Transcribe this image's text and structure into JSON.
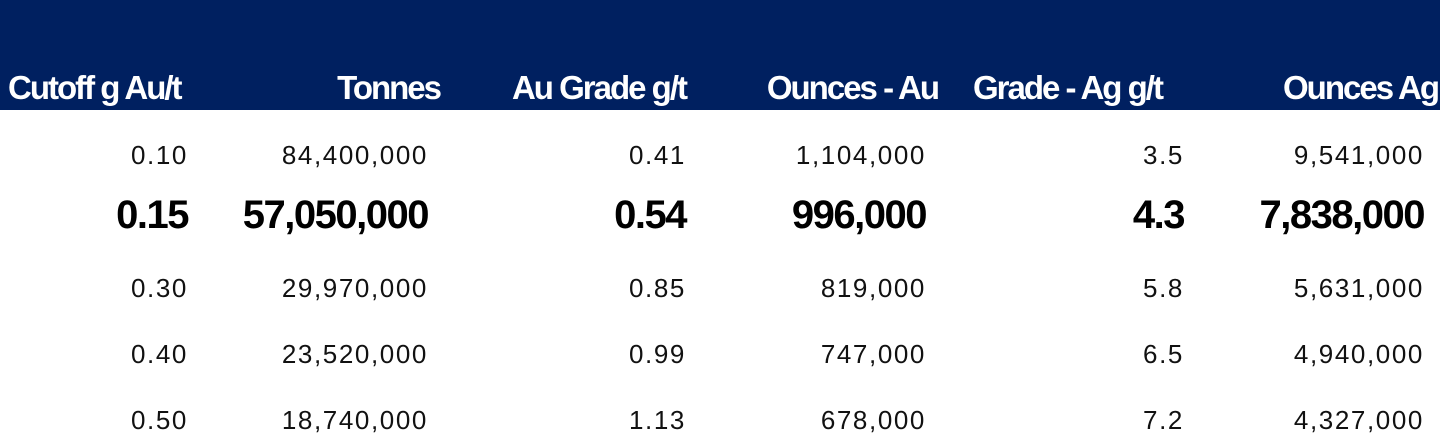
{
  "table": {
    "header": [
      "Cutoff g Au/t",
      "Tonnes",
      "Au Grade g/t",
      "Ounces - Au",
      "Grade - Ag g/t",
      "Ounces Ag"
    ],
    "rows": [
      [
        "0.10",
        "84,400,000",
        "0.41",
        "1,104,000",
        "3.5",
        "9,541,000"
      ],
      [
        "0.15",
        "57,050,000",
        "0.54",
        "996,000",
        "4.3",
        "7,838,000"
      ],
      [
        "0.30",
        "29,970,000",
        "0.85",
        "819,000",
        "5.8",
        "5,631,000"
      ],
      [
        "0.40",
        "23,520,000",
        "0.99",
        "747,000",
        "6.5",
        "4,940,000"
      ],
      [
        "0.50",
        "18,740,000",
        "1.13",
        "678,000",
        "7.2",
        "4,327,000"
      ]
    ]
  }
}
